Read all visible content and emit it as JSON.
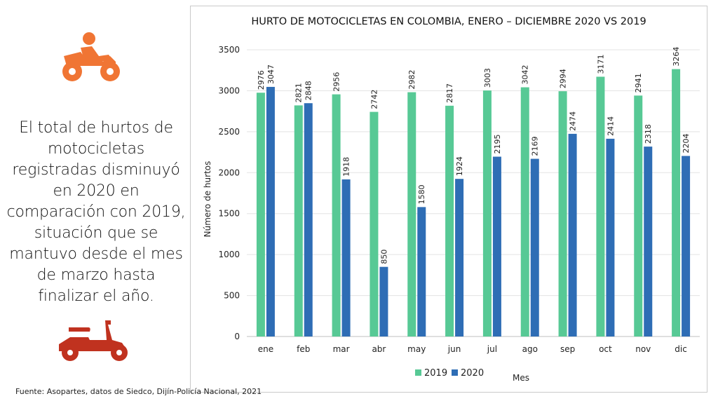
{
  "left_panel": {
    "statement": "El total de hurtos de motocicletas registradas disminuyó en 2020 en comparación con 2019, situación que se mantuvo desde el mes de marzo hasta finalizar el año.",
    "top_icon": "motorcycle-rider-icon",
    "bottom_icon": "scooter-icon",
    "top_icon_color": "#f07534",
    "bottom_icon_color": "#c0321f"
  },
  "source": "Fuente: Asopartes, datos de Siedco, Dijín-Policía Nacional, 2021",
  "chart_data": {
    "type": "bar",
    "title": "HURTO DE MOTOCICLETAS EN COLOMBIA, ENERO – DICIEMBRE 2020 VS 2019",
    "xlabel": "Mes",
    "ylabel": "Número de hurtos",
    "ylim": [
      0,
      3500
    ],
    "yticks": [
      0,
      500,
      1000,
      1500,
      2000,
      2500,
      3000,
      3500
    ],
    "grid": true,
    "legend_position": "bottom",
    "categories": [
      "ene",
      "feb",
      "mar",
      "abr",
      "may",
      "jun",
      "jul",
      "ago",
      "sep",
      "oct",
      "nov",
      "dic"
    ],
    "series": [
      {
        "name": "2019",
        "color": "#57c995",
        "values": [
          2976,
          2821,
          2956,
          2742,
          2982,
          2817,
          3003,
          3042,
          2994,
          3171,
          2941,
          3264
        ]
      },
      {
        "name": "2020",
        "color": "#2e6db5",
        "values": [
          3047,
          2848,
          1918,
          850,
          1580,
          1924,
          2195,
          2169,
          2474,
          2414,
          2318,
          2204
        ]
      }
    ]
  }
}
